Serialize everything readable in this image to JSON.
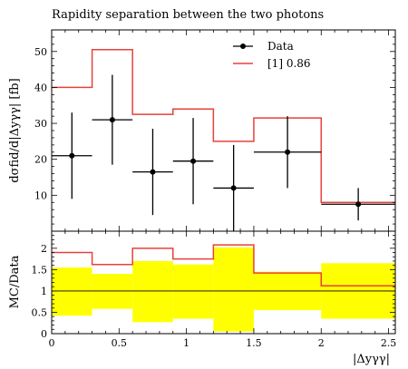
{
  "chart_data": {
    "type": "line",
    "title": "Rapidity separation between the two photons",
    "xlabel": "|Δyγγ|",
    "main": {
      "ylabel": "dσfid/d|Δyγγ| [fb]",
      "ylim": [
        0,
        56
      ],
      "yticks": [
        10,
        20,
        30,
        40,
        50
      ],
      "ytick_labels": [
        "10",
        "20",
        "30",
        "40",
        "50"
      ]
    },
    "ratio": {
      "ylabel": "MC/Data",
      "ylim": [
        0,
        2.4
      ],
      "yticks": [
        0,
        0.5,
        1,
        1.5,
        2
      ],
      "ytick_labels": [
        "0",
        "0.5",
        "1",
        "1.5",
        "2"
      ]
    },
    "xlim": [
      0,
      2.55
    ],
    "xticks": [
      0,
      0.5,
      1,
      1.5,
      2,
      2.5
    ],
    "xtick_labels": [
      "0",
      "0.5",
      "1",
      "1.5",
      "2",
      "2.5"
    ],
    "bin_edges": [
      0,
      0.3,
      0.6,
      0.9,
      1.2,
      1.5,
      2.0,
      2.55
    ],
    "legend": {
      "position": "top-right",
      "data_label": "Data",
      "mc_label": "[1] 0.86"
    },
    "series": [
      {
        "name": "Data",
        "x": [
          0.15,
          0.45,
          0.75,
          1.05,
          1.35,
          1.75,
          2.275
        ],
        "y": [
          21,
          31,
          16.5,
          19.5,
          12,
          22,
          7.5
        ],
        "yerr_low": [
          12,
          12.5,
          12,
          12,
          12,
          10,
          4.5
        ],
        "yerr_high": [
          12,
          12.5,
          12,
          12,
          12,
          10,
          4.5
        ]
      },
      {
        "name": "[1] 0.86",
        "values": [
          40,
          50.5,
          32.5,
          34,
          25,
          31.5,
          8
        ]
      }
    ],
    "ratio_series": {
      "mc_over_data": [
        1.9,
        1.62,
        2.0,
        1.75,
        2.08,
        1.42,
        1.12
      ],
      "band_low": [
        0.42,
        0.58,
        0.27,
        0.35,
        0.05,
        0.55,
        0.35
      ],
      "band_high": [
        1.55,
        1.4,
        1.7,
        1.62,
        2.02,
        1.45,
        1.65
      ]
    },
    "colors": {
      "mc_line": "#e8413c",
      "band": "#ffff00",
      "data": "#000000"
    }
  }
}
